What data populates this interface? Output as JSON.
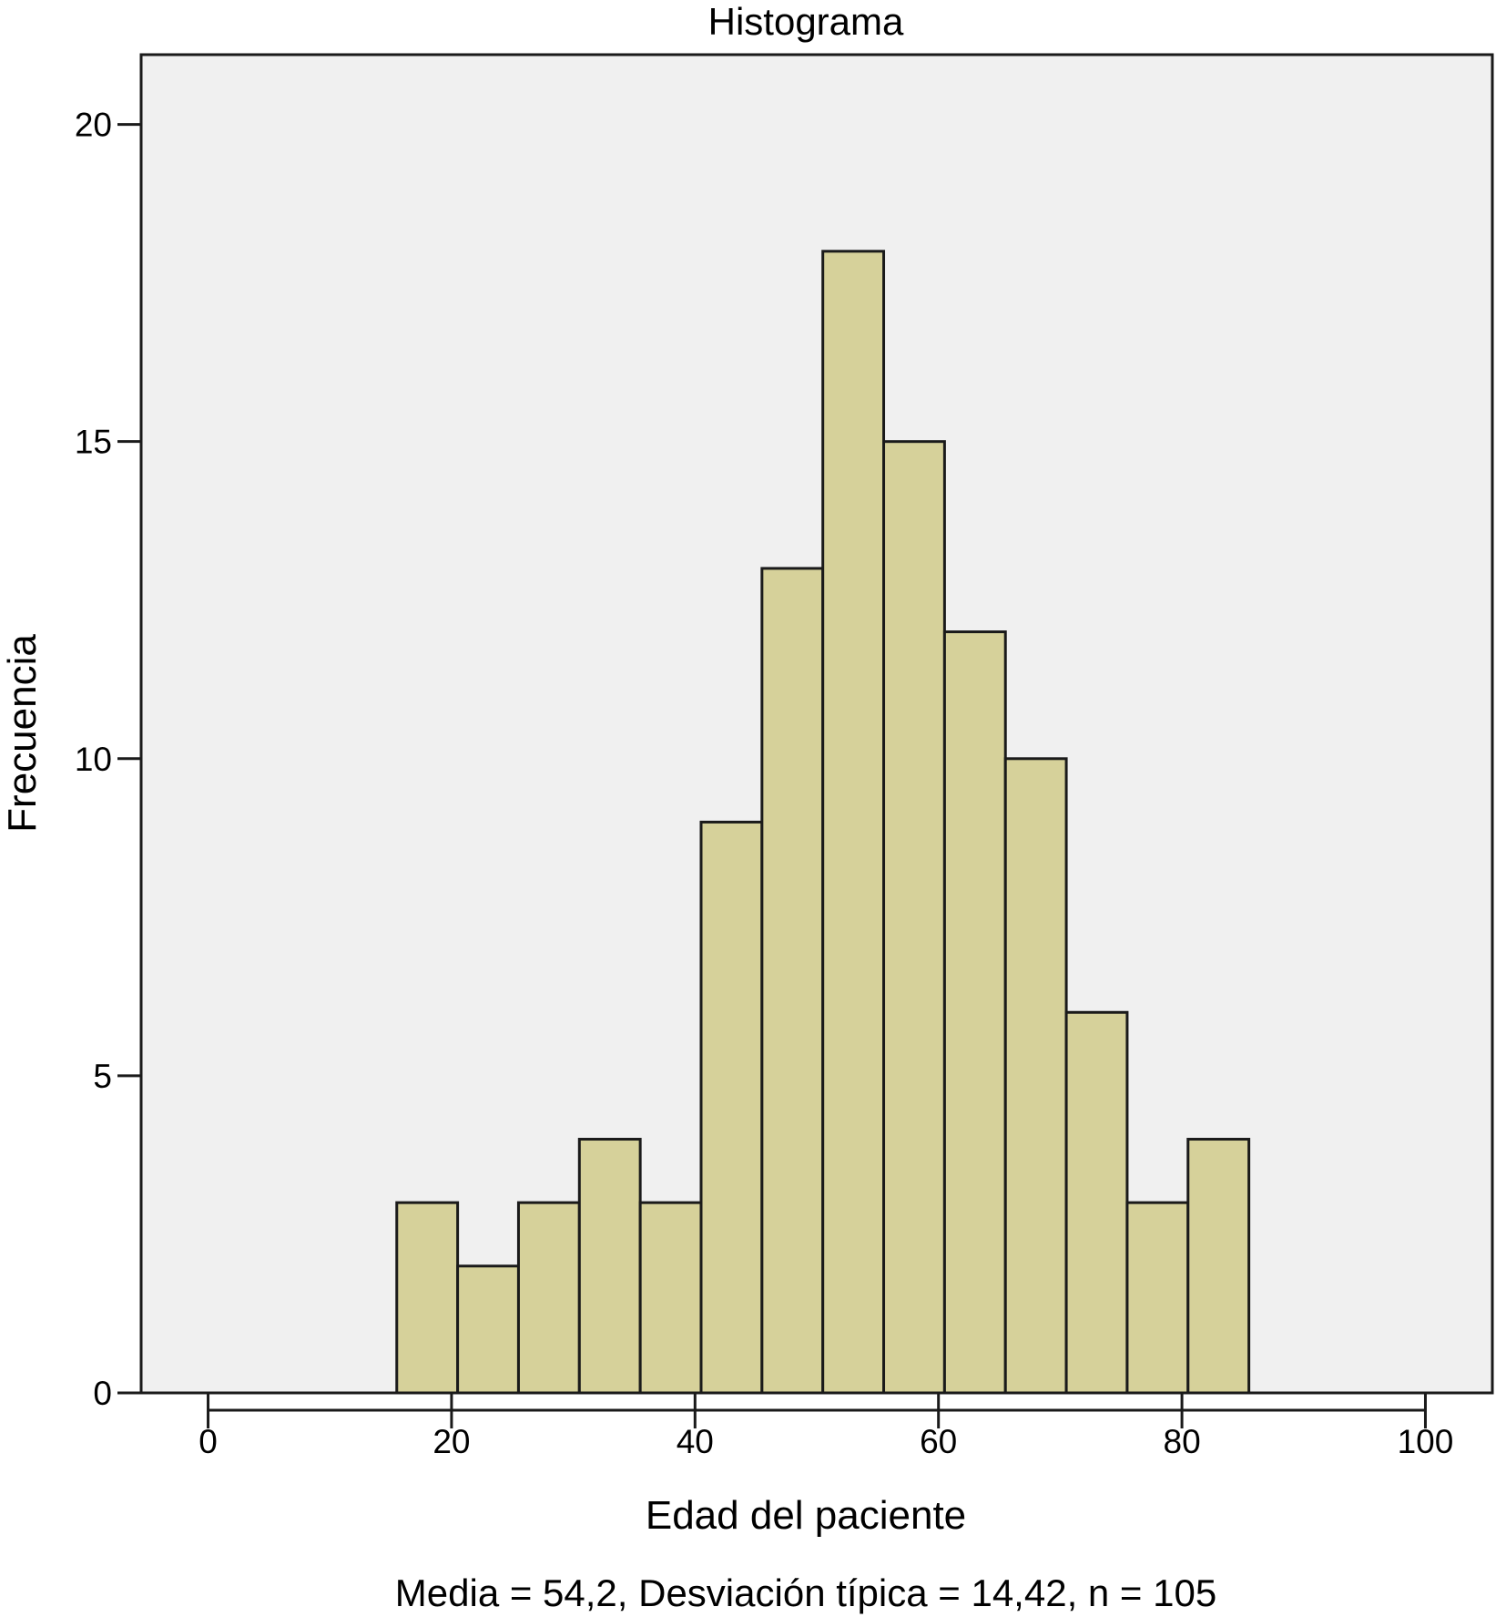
{
  "chart_data": {
    "type": "bar",
    "title": "Histograma",
    "xlabel": "Edad del paciente",
    "ylabel": "Frecuencia",
    "stats_caption": "Media = 54,2,  Desviación típica = 14,42,  n = 105",
    "xlim": [
      -5.5,
      105.5
    ],
    "ylim": [
      0,
      21.1
    ],
    "x_ticks": [
      0,
      20,
      40,
      60,
      80,
      100
    ],
    "y_ticks": [
      0,
      5,
      10,
      15,
      20
    ],
    "bin_width": 5,
    "bins": [
      {
        "start": 15.5,
        "end": 20.5,
        "count": 3
      },
      {
        "start": 20.5,
        "end": 25.5,
        "count": 2
      },
      {
        "start": 25.5,
        "end": 30.5,
        "count": 3
      },
      {
        "start": 30.5,
        "end": 35.5,
        "count": 4
      },
      {
        "start": 35.5,
        "end": 40.5,
        "count": 3
      },
      {
        "start": 40.5,
        "end": 45.5,
        "count": 9
      },
      {
        "start": 45.5,
        "end": 50.5,
        "count": 13
      },
      {
        "start": 50.5,
        "end": 55.5,
        "count": 18
      },
      {
        "start": 55.5,
        "end": 60.5,
        "count": 15
      },
      {
        "start": 60.5,
        "end": 65.5,
        "count": 12
      },
      {
        "start": 65.5,
        "end": 70.5,
        "count": 10
      },
      {
        "start": 70.5,
        "end": 75.5,
        "count": 6
      },
      {
        "start": 75.5,
        "end": 80.5,
        "count": 3
      },
      {
        "start": 80.5,
        "end": 85.5,
        "count": 4
      }
    ],
    "colors": {
      "bar_fill": "#d6d19a",
      "bar_stroke": "#1a1a1a",
      "plot_background": "#f0f0f0"
    },
    "grid": false,
    "legend": "none"
  }
}
